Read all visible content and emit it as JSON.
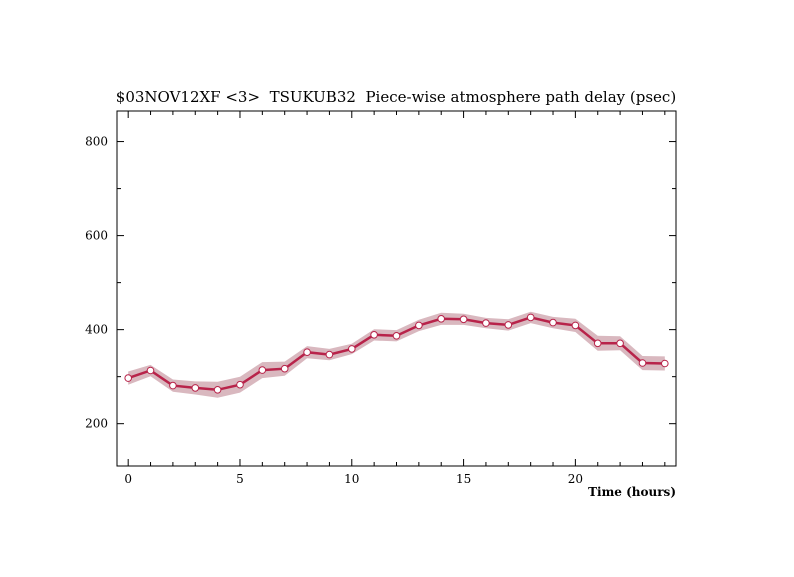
{
  "chart_data": {
    "type": "line",
    "title": "$03NOV12XF <3>  TSUKUB32  Piece-wise atmosphere path delay (psec)",
    "xlabel": "Time (hours)",
    "ylabel": "",
    "xlim": [
      -0.5,
      24.5
    ],
    "ylim": [
      110,
      865
    ],
    "x_ticks": [
      0,
      5,
      10,
      15,
      20
    ],
    "y_ticks": [
      200,
      400,
      600,
      800
    ],
    "x": [
      0,
      1,
      2,
      3,
      4,
      5,
      6,
      7,
      8,
      9,
      10,
      11,
      12,
      13,
      14,
      15,
      16,
      17,
      18,
      19,
      20,
      21,
      22,
      23,
      24
    ],
    "series": [
      {
        "values": [
          297,
          313,
          281,
          276,
          272,
          283,
          314,
          317,
          352,
          347,
          359,
          389,
          387,
          409,
          423,
          422,
          414,
          410,
          426,
          415,
          409,
          371,
          371,
          329,
          328
        ],
        "uncertainty": [
          14,
          12,
          13,
          14,
          17,
          17,
          17,
          15,
          13,
          12,
          11,
          12,
          12,
          12,
          13,
          12,
          11,
          12,
          12,
          12,
          14,
          16,
          15,
          15,
          15
        ]
      }
    ],
    "colors": {
      "line": "#b8234a",
      "band": "#d9b8bf",
      "marker_fill": "#ffffff"
    },
    "grid": false
  }
}
